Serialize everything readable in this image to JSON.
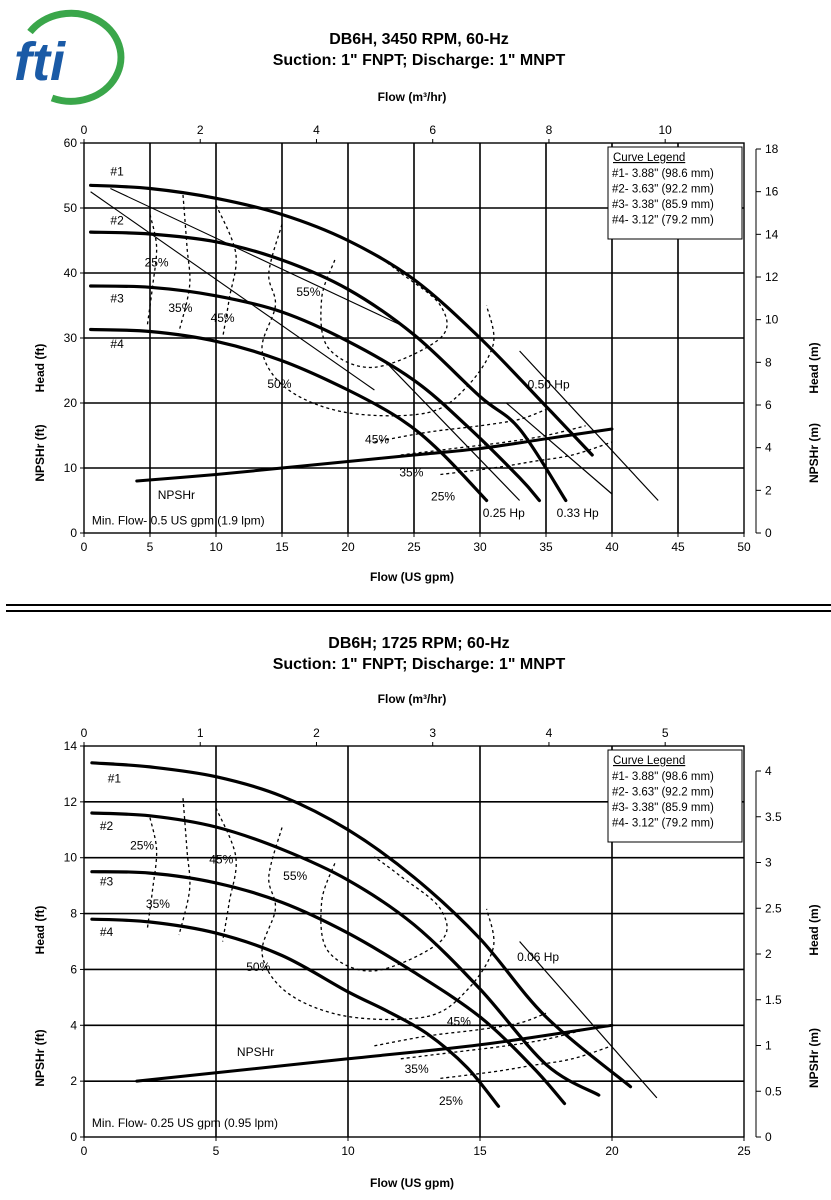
{
  "logo": {
    "text": "fti",
    "colors": {
      "blue": "#1a5aa6",
      "green": "#3aa64a"
    }
  },
  "chart_data": [
    {
      "type": "line",
      "title": "DB6H, 3450 RPM, 60-Hz",
      "subtitle": "Suction: 1\" FNPT; Discharge: 1\" MNPT",
      "xlabel": "Flow (US gpm)",
      "x2label": "Flow (m³/hr)",
      "ylabel_left_top": "Head (ft)",
      "ylabel_left_bottom": "NPSHr (ft)",
      "ylabel_right_top": "Head (m)",
      "ylabel_right_bottom": "NPSHr (m)",
      "xlim": [
        0,
        50
      ],
      "ylim": [
        0,
        60
      ],
      "xticks": [
        0,
        5,
        10,
        15,
        20,
        25,
        30,
        35,
        40,
        45,
        50
      ],
      "yticks": [
        0,
        10,
        20,
        30,
        40,
        50,
        60
      ],
      "x2ticks": [
        0,
        2,
        4,
        6,
        8,
        10
      ],
      "y2ticks": [
        0,
        2,
        4,
        6,
        8,
        10,
        12,
        14,
        16,
        18
      ],
      "grid": true,
      "legend": {
        "title": "Curve Legend",
        "items": [
          "#1- 3.88\" (98.6 mm)",
          "#2- 3.63\" (92.2 mm)",
          "#3- 3.38\" (85.9 mm)",
          "#4- 3.12\" (79.2 mm)"
        ],
        "position": "top-right"
      },
      "series": [
        {
          "name": "#1",
          "x": [
            0.5,
            5,
            10,
            15,
            20,
            25,
            30,
            35,
            38.5
          ],
          "y": [
            53.5,
            53,
            51.5,
            49,
            45,
            39,
            30,
            19.5,
            12
          ]
        },
        {
          "name": "#2",
          "x": [
            0.5,
            5,
            10,
            15,
            20,
            25,
            30,
            33,
            36.5
          ],
          "y": [
            46.3,
            46,
            44.8,
            42,
            37.5,
            30.5,
            21,
            16,
            5
          ]
        },
        {
          "name": "#3",
          "x": [
            0.5,
            5,
            10,
            15,
            20,
            25,
            29,
            33,
            34.5
          ],
          "y": [
            38,
            37.8,
            36.5,
            34,
            29.5,
            23.5,
            16.5,
            8.5,
            5
          ]
        },
        {
          "name": "#4",
          "x": [
            0.5,
            5,
            10,
            15,
            20,
            24,
            27,
            30.5
          ],
          "y": [
            31.3,
            31,
            29.5,
            26.5,
            22,
            17.5,
            12.5,
            5
          ]
        }
      ],
      "npshr": {
        "name": "NPSHr",
        "x": [
          4,
          10,
          15,
          20,
          25,
          30,
          35,
          40
        ],
        "y": [
          8,
          9,
          10,
          11,
          12,
          13,
          14.5,
          16
        ]
      },
      "power_lines": [
        {
          "label": "0.25 Hp",
          "x": [
            23,
            33
          ],
          "y": [
            26,
            5
          ]
        },
        {
          "label": "0.33 Hp",
          "x": [
            32,
            40
          ],
          "y": [
            20,
            6
          ]
        },
        {
          "label": "0.50 Hp",
          "x": [
            33,
            43.5
          ],
          "y": [
            28,
            5
          ]
        }
      ],
      "annotations": [
        {
          "text": "#1",
          "x": 2,
          "y": 55
        },
        {
          "text": "#2",
          "x": 2,
          "y": 47.5
        },
        {
          "text": "#3",
          "x": 2,
          "y": 35.5
        },
        {
          "text": "#4",
          "x": 2,
          "y": 28.5
        },
        {
          "text": "25%",
          "x": 5.5,
          "y": 41
        },
        {
          "text": "35%",
          "x": 7.3,
          "y": 34
        },
        {
          "text": "45%",
          "x": 10.5,
          "y": 32.5
        },
        {
          "text": "55%",
          "x": 17,
          "y": 36.5
        },
        {
          "text": "50%",
          "x": 14.8,
          "y": 22.3
        },
        {
          "text": "45%",
          "x": 22.2,
          "y": 13.8
        },
        {
          "text": "35%",
          "x": 24.8,
          "y": 8.7
        },
        {
          "text": "25%",
          "x": 27.2,
          "y": 5
        },
        {
          "text": "NPSHr",
          "x": 7,
          "y": 5.2
        },
        {
          "text": "0.50 Hp",
          "x": 35.2,
          "y": 22.2
        },
        {
          "text": "0.25 Hp",
          "x": 31.8,
          "y": 2.5
        },
        {
          "text": "0.33 Hp",
          "x": 37.4,
          "y": 2.5
        },
        {
          "text": "Min. Flow- 0.5 US gpm (1.9 lpm)",
          "x": 0.6,
          "y": 1.3
        }
      ]
    },
    {
      "type": "line",
      "title": "DB6H; 1725 RPM; 60-Hz",
      "subtitle": "Suction: 1\" FNPT; Discharge: 1\" MNPT",
      "xlabel": "Flow (US gpm)",
      "x2label": "Flow (m³/hr)",
      "ylabel_left_top": "Head (ft)",
      "ylabel_left_bottom": "NPSHr (ft)",
      "ylabel_right_top": "Head (m)",
      "ylabel_right_bottom": "NPSHr (m)",
      "xlim": [
        0,
        25
      ],
      "ylim": [
        0,
        14
      ],
      "xticks": [
        0,
        5,
        10,
        15,
        20,
        25
      ],
      "yticks": [
        0,
        2,
        4,
        6,
        8,
        10,
        12,
        14
      ],
      "x2ticks": [
        0,
        1,
        2,
        3,
        4,
        5
      ],
      "y2ticks": [
        "0",
        "0.5",
        "1",
        "1.5",
        "2",
        "2.5",
        "3",
        "3.5",
        "4"
      ],
      "grid": true,
      "legend": {
        "title": "Curve Legend",
        "items": [
          "#1- 3.88\" (98.6 mm)",
          "#2- 3.63\" (92.2 mm)",
          "#3- 3.38\" (85.9 mm)",
          "#4- 3.12\" (79.2 mm)"
        ],
        "position": "top-right"
      },
      "series": [
        {
          "name": "#1",
          "x": [
            0.3,
            2.5,
            5,
            7.5,
            10,
            12.5,
            15,
            17.5,
            20.7
          ],
          "y": [
            13.4,
            13.25,
            12.9,
            12.2,
            11,
            9.3,
            7.1,
            4.3,
            1.8
          ]
        },
        {
          "name": "#2",
          "x": [
            0.3,
            2.5,
            5,
            7.5,
            10,
            12.5,
            15,
            17.5,
            19.5
          ],
          "y": [
            11.6,
            11.5,
            11.1,
            10.3,
            9.2,
            7.6,
            5.3,
            2.6,
            1.5
          ]
        },
        {
          "name": "#3",
          "x": [
            0.3,
            2.5,
            5,
            7.5,
            10,
            12.5,
            15,
            17,
            18.2
          ],
          "y": [
            9.5,
            9.45,
            9.1,
            8.4,
            7.3,
            5.9,
            4.3,
            2.5,
            1.2
          ]
        },
        {
          "name": "#4",
          "x": [
            0.3,
            2.5,
            5,
            7.5,
            10,
            11.5,
            13,
            14.5,
            15.7
          ],
          "y": [
            7.8,
            7.7,
            7.3,
            6.5,
            5.2,
            4.5,
            3.7,
            2.5,
            1.1
          ]
        }
      ],
      "npshr": {
        "name": "NPSHr",
        "x": [
          2,
          5,
          10,
          15,
          20
        ],
        "y": [
          2,
          2.3,
          2.8,
          3.3,
          4
        ]
      },
      "power_lines": [
        {
          "label": "0.06 Hp",
          "x": [
            16.5,
            21.7
          ],
          "y": [
            7,
            1.4
          ]
        }
      ],
      "annotations": [
        {
          "text": "#1",
          "x": 0.9,
          "y": 12.7
        },
        {
          "text": "#2",
          "x": 0.6,
          "y": 11
        },
        {
          "text": "#3",
          "x": 0.6,
          "y": 9
        },
        {
          "text": "#4",
          "x": 0.6,
          "y": 7.2
        },
        {
          "text": "25%",
          "x": 2.2,
          "y": 10.3
        },
        {
          "text": "45%",
          "x": 5.2,
          "y": 9.8
        },
        {
          "text": "55%",
          "x": 8,
          "y": 9.2
        },
        {
          "text": "35%",
          "x": 2.8,
          "y": 8.2
        },
        {
          "text": "50%",
          "x": 6.6,
          "y": 5.95
        },
        {
          "text": "45%",
          "x": 14.2,
          "y": 4.0
        },
        {
          "text": "35%",
          "x": 12.6,
          "y": 2.3
        },
        {
          "text": "25%",
          "x": 13.9,
          "y": 1.15
        },
        {
          "text": "NPSHr",
          "x": 6.5,
          "y": 2.9
        },
        {
          "text": "0.06 Hp",
          "x": 17.2,
          "y": 6.3
        },
        {
          "text": "Min. Flow- 0.25 US gpm (0.95 lpm)",
          "x": 0.3,
          "y": 0.35
        }
      ]
    }
  ]
}
